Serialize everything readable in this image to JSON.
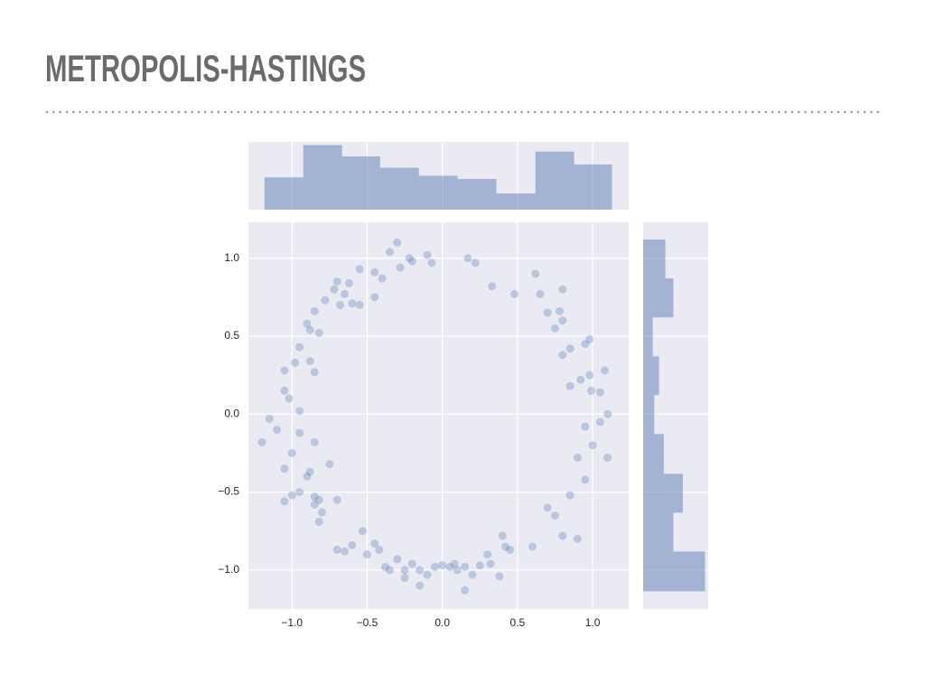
{
  "title": "METROPOLIS-HASTINGS",
  "chart_data": [
    {
      "type": "scatter",
      "color": "#4c72b0",
      "alpha": 0.3,
      "grid": true,
      "xlim": [
        -1.29,
        1.24
      ],
      "ylim": [
        -1.25,
        1.23
      ],
      "xticks": [
        {
          "value": -1,
          "label": "−1.0"
        },
        {
          "value": -0.5,
          "label": "−0.5"
        },
        {
          "value": 0,
          "label": "0.0"
        },
        0.5,
        {
          "value": 1,
          "label": "1.0"
        }
      ],
      "yticks": [
        {
          "value": -1,
          "label": "−1.0"
        },
        {
          "value": -0.5,
          "label": "−0.5"
        },
        {
          "value": 0,
          "label": "0.0"
        },
        0.5,
        {
          "value": 1,
          "label": "1.0"
        }
      ],
      "x": [
        -0.55,
        -0.45,
        -0.3,
        -0.35,
        -0.2,
        -0.22,
        -0.4,
        -0.28,
        -0.6,
        -0.65,
        -0.7,
        -0.62,
        -0.78,
        -0.85,
        -0.72,
        -0.9,
        -0.88,
        -0.95,
        -0.98,
        -0.88,
        -1.05,
        -0.85,
        -1.05,
        -1.02,
        -0.95,
        -1.15,
        -1.2,
        -1.1,
        -1.0,
        -0.95,
        -0.85,
        -1.05,
        -0.9,
        -0.88,
        -0.95,
        -1.0,
        -1.05,
        -0.85,
        -0.82,
        -0.85,
        -0.8,
        -0.82,
        -0.75,
        -0.7,
        -0.7,
        -0.65,
        -0.6,
        -0.53,
        -0.5,
        -0.45,
        -0.42,
        -0.38,
        -0.35,
        -0.3,
        -0.25,
        -0.2,
        -0.15,
        -0.1,
        -0.05,
        0.0,
        0.05,
        0.08,
        0.1,
        0.15,
        0.15,
        0.2,
        0.25,
        0.3,
        0.32,
        0.38,
        0.42,
        0.45,
        0.4,
        -0.25,
        -0.15,
        0.6,
        0.7,
        0.75,
        0.8,
        0.85,
        0.9,
        0.95,
        0.9,
        1.0,
        1.1,
        0.95,
        1.05,
        1.1,
        0.99,
        1.05,
        0.98,
        1.08,
        0.92,
        0.85,
        0.98,
        0.95,
        0.85,
        0.8,
        0.75,
        0.8,
        0.7,
        0.78,
        0.65,
        0.62,
        0.8,
        0.17,
        0.22,
        0.33,
        0.48,
        -0.07,
        -0.1,
        -0.45,
        -0.55,
        -0.82,
        -0.68
      ],
      "y": [
        0.93,
        0.91,
        1.1,
        1.04,
        0.98,
        1.0,
        0.87,
        0.94,
        0.71,
        0.77,
        0.85,
        0.84,
        0.73,
        0.66,
        0.8,
        0.58,
        0.54,
        0.43,
        0.33,
        0.34,
        0.28,
        0.27,
        0.15,
        0.1,
        0.02,
        -0.03,
        -0.18,
        -0.1,
        -0.25,
        -0.12,
        -0.18,
        -0.35,
        -0.4,
        -0.37,
        -0.5,
        -0.52,
        -0.56,
        -0.53,
        -0.55,
        -0.58,
        -0.63,
        -0.69,
        -0.32,
        -0.55,
        -0.87,
        -0.88,
        -0.84,
        -0.75,
        -0.9,
        -0.83,
        -0.87,
        -0.98,
        -1.0,
        -0.93,
        -1.0,
        -0.96,
        -1.0,
        -1.03,
        -0.98,
        -0.97,
        -0.98,
        -0.96,
        -1.0,
        -0.98,
        -1.13,
        -1.03,
        -0.97,
        -0.9,
        -0.96,
        -1.04,
        -0.85,
        -0.87,
        -0.78,
        -1.05,
        -1.1,
        -0.85,
        -0.6,
        -0.65,
        -0.78,
        -0.52,
        -0.8,
        -0.42,
        -0.28,
        -0.2,
        -0.28,
        -0.08,
        -0.05,
        0.0,
        0.15,
        0.14,
        0.25,
        0.28,
        0.22,
        0.18,
        0.48,
        0.45,
        0.42,
        0.38,
        0.55,
        0.6,
        0.65,
        0.66,
        0.77,
        0.9,
        0.8,
        1.0,
        0.97,
        0.82,
        0.77,
        0.97,
        1.02,
        0.75,
        0.7,
        0.52,
        0.7
      ]
    },
    {
      "type": "histogram",
      "orientation": "vertical",
      "color": "#4c72b0",
      "alpha": 0.45,
      "xlim": [
        -1.29,
        1.24
      ],
      "ylim": [
        0,
        42
      ],
      "bins": [
        -1.183,
        -0.925,
        -0.667,
        -0.414,
        -0.156,
        0.102,
        0.36,
        0.619,
        0.877,
        1.129
      ],
      "values": [
        20,
        40,
        33,
        26,
        21,
        19,
        10,
        36,
        28
      ]
    },
    {
      "type": "histogram",
      "orientation": "horizontal",
      "color": "#4c72b0",
      "alpha": 0.45,
      "ylim": [
        -1.25,
        1.23
      ],
      "xlim": [
        0,
        41
      ],
      "bins": [
        -1.136,
        -0.881,
        -0.632,
        -0.383,
        -0.128,
        0.122,
        0.371,
        0.62,
        0.87,
        1.119
      ],
      "values": [
        39,
        19,
        25,
        13,
        7,
        10,
        6,
        19,
        14
      ]
    }
  ]
}
